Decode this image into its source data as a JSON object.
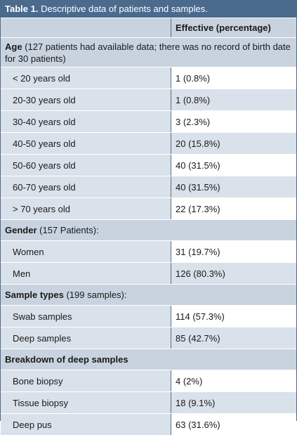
{
  "title": {
    "label": "Table 1.",
    "text": "Descriptive data of patients and samples."
  },
  "header": {
    "col1": "",
    "col2": "Effective (percentage)"
  },
  "sections": [
    {
      "heading": "Age",
      "note": "(127 patients had available data; there was no record of birth date for 30 patients)",
      "rows": [
        {
          "label": "< 20 years old",
          "value": "1 (0.8%)"
        },
        {
          "label": "20-30 years old",
          "value": "1 (0.8%)"
        },
        {
          "label": "30-40 years old",
          "value": "3 (2.3%)"
        },
        {
          "label": "40-50 years old",
          "value": "20 (15.8%)"
        },
        {
          "label": "50-60 years old",
          "value": "40 (31.5%)"
        },
        {
          "label": "60-70 years old",
          "value": "40 (31.5%)"
        },
        {
          "label": "> 70 years old",
          "value": "22 (17.3%)"
        }
      ]
    },
    {
      "heading": "Gender",
      "note": "(157 Patients):",
      "rows": [
        {
          "label": "Women",
          "value": "31 (19.7%)"
        },
        {
          "label": "Men",
          "value": "126 (80.3%)"
        }
      ]
    },
    {
      "heading": "Sample types",
      "note": "(199 samples):",
      "rows": [
        {
          "label": "Swab samples",
          "value": "114 (57.3%)"
        },
        {
          "label": "Deep samples",
          "value": "85 (42.7%)"
        }
      ]
    },
    {
      "heading": "Breakdown of deep samples",
      "note": "",
      "rows": [
        {
          "label": "Bone biopsy",
          "value": "4 (2%)"
        },
        {
          "label": "Tissue biopsy",
          "value": "18 (9.1%)"
        },
        {
          "label": "Deep pus",
          "value": "63 (31.6%)"
        }
      ]
    }
  ]
}
